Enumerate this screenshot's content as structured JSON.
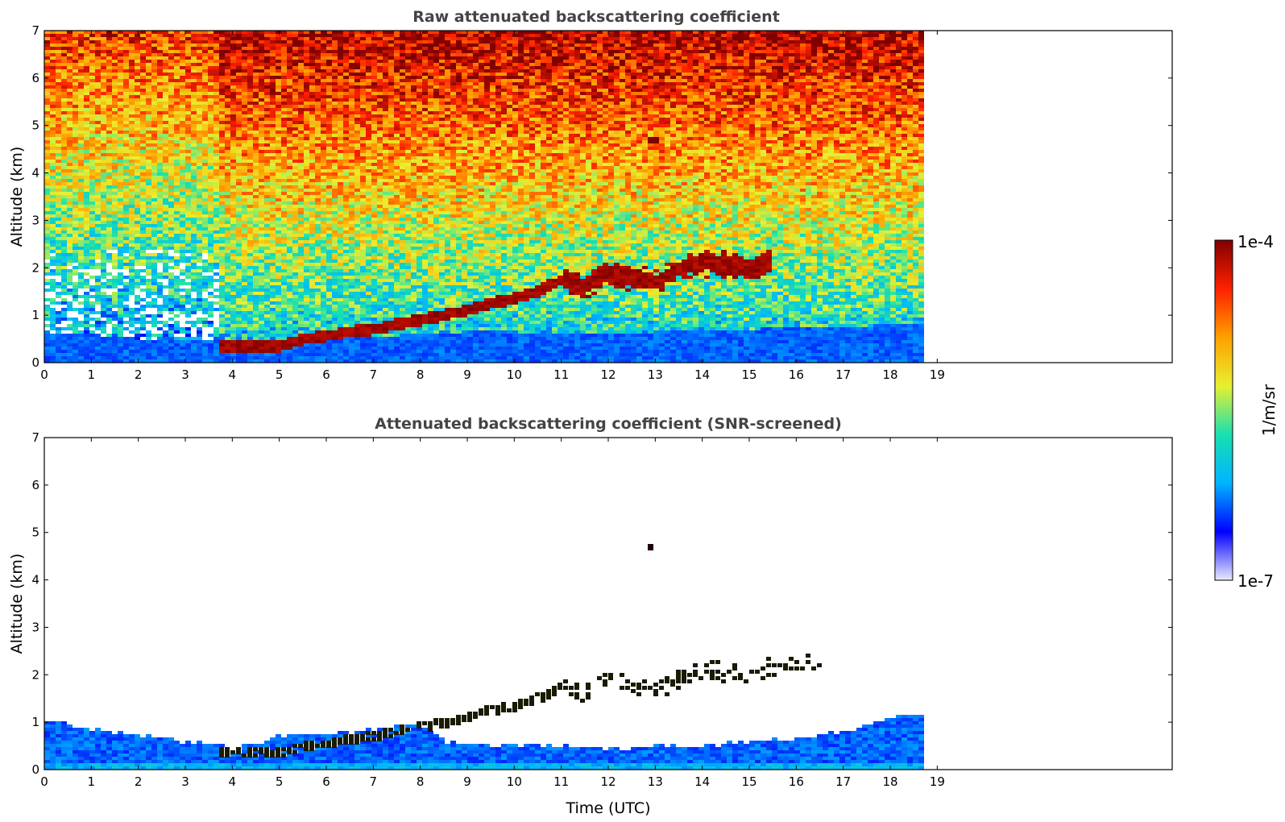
{
  "chart_data": [
    {
      "type": "heatmap",
      "title": "Raw attenuated backscattering coefficient",
      "xlabel": "",
      "ylabel": "Altitude (km)",
      "xlim": [
        0,
        24
      ],
      "ylim": [
        0,
        7
      ],
      "x_ticks": [
        "0",
        "1",
        "2",
        "3",
        "4",
        "5",
        "6",
        "7",
        "8",
        "9",
        "10",
        "11",
        "12",
        "13",
        "14",
        "15",
        "16",
        "17",
        "18",
        "19"
      ],
      "y_ticks": [
        "0",
        "1",
        "2",
        "3",
        "4",
        "5",
        "6",
        "7"
      ],
      "data_end_time": 18.8,
      "noise_change_time": 3.75,
      "boundary_layer_top_km": [
        [
          0,
          0.65
        ],
        [
          1,
          0.6
        ],
        [
          2,
          0.5
        ],
        [
          3,
          0.45
        ],
        [
          3.75,
          0.45
        ],
        [
          4,
          0.4
        ],
        [
          5,
          0.5
        ],
        [
          6,
          0.5
        ],
        [
          7,
          0.55
        ],
        [
          8,
          0.6
        ],
        [
          9,
          0.65
        ],
        [
          10,
          0.65
        ],
        [
          11,
          0.6
        ],
        [
          12,
          0.6
        ],
        [
          13,
          0.65
        ],
        [
          14,
          0.65
        ],
        [
          15,
          0.7
        ],
        [
          16,
          0.75
        ],
        [
          17,
          0.75
        ],
        [
          18,
          0.8
        ],
        [
          18.8,
          0.8
        ]
      ],
      "aerosol_layer_km": [
        [
          3.75,
          0.35
        ],
        [
          4.5,
          0.35
        ],
        [
          5,
          0.35
        ],
        [
          5.6,
          0.5
        ],
        [
          6,
          0.55
        ],
        [
          6.5,
          0.65
        ],
        [
          7,
          0.7
        ],
        [
          7.5,
          0.8
        ],
        [
          8,
          0.9
        ],
        [
          8.5,
          1.0
        ],
        [
          9,
          1.1
        ],
        [
          9.5,
          1.25
        ],
        [
          10,
          1.35
        ],
        [
          10.5,
          1.5
        ],
        [
          11,
          1.75
        ],
        [
          11.5,
          1.6
        ],
        [
          12,
          1.9
        ],
        [
          12.5,
          1.8
        ],
        [
          13,
          1.7
        ],
        [
          13.5,
          1.95
        ],
        [
          14,
          2.1
        ],
        [
          15,
          2.0
        ],
        [
          15.5,
          2.15
        ]
      ],
      "isolated_feature": {
        "time": 12.9,
        "altitude_km": 4.7
      }
    },
    {
      "type": "heatmap",
      "title": "Attenuated backscattering coefficient (SNR-screened)",
      "xlabel": "Time (UTC)",
      "ylabel": "Altitude (km)",
      "xlim": [
        0,
        24
      ],
      "ylim": [
        0,
        7
      ],
      "x_ticks": [
        "0",
        "1",
        "2",
        "3",
        "4",
        "5",
        "6",
        "7",
        "8",
        "9",
        "10",
        "11",
        "12",
        "13",
        "14",
        "15",
        "16",
        "17",
        "18",
        "19"
      ],
      "y_ticks": [
        "0",
        "1",
        "2",
        "3",
        "4",
        "5",
        "6",
        "7"
      ],
      "data_end_time": 18.8,
      "screened_signal_top_km": [
        [
          0,
          1.05
        ],
        [
          1,
          0.85
        ],
        [
          2,
          0.75
        ],
        [
          3,
          0.6
        ],
        [
          3.75,
          0.55
        ],
        [
          4,
          0.45
        ],
        [
          5,
          0.7
        ],
        [
          6,
          0.75
        ],
        [
          7,
          0.85
        ],
        [
          8,
          0.95
        ],
        [
          8.5,
          0.6
        ],
        [
          9,
          0.55
        ],
        [
          10,
          0.5
        ],
        [
          11,
          0.5
        ],
        [
          12,
          0.45
        ],
        [
          13,
          0.5
        ],
        [
          14,
          0.5
        ],
        [
          15,
          0.6
        ],
        [
          16,
          0.65
        ],
        [
          17,
          0.8
        ],
        [
          18,
          1.1
        ],
        [
          18.8,
          1.2
        ]
      ],
      "aerosol_layer_km": [
        [
          3.75,
          0.35
        ],
        [
          4.5,
          0.35
        ],
        [
          5,
          0.35
        ],
        [
          5.6,
          0.5
        ],
        [
          6,
          0.55
        ],
        [
          6.5,
          0.65
        ],
        [
          7,
          0.7
        ],
        [
          7.5,
          0.8
        ],
        [
          8,
          0.9
        ],
        [
          8.5,
          1.0
        ],
        [
          9,
          1.1
        ],
        [
          9.5,
          1.25
        ],
        [
          10,
          1.35
        ],
        [
          10.5,
          1.5
        ],
        [
          11,
          1.75
        ],
        [
          11.5,
          1.6
        ],
        [
          12,
          1.9
        ],
        [
          12.5,
          1.8
        ],
        [
          13,
          1.7
        ],
        [
          13.5,
          1.95
        ],
        [
          14,
          2.1
        ],
        [
          15,
          2.0
        ],
        [
          15.5,
          2.15
        ],
        [
          16.5,
          2.3
        ]
      ],
      "isolated_feature": {
        "time": 12.9,
        "altitude_km": 4.7
      }
    }
  ],
  "colorbar": {
    "label": "1/m/sr",
    "max_label": "1e-4",
    "min_label": "1e-7",
    "colors": [
      "#e9e9fb",
      "#0000ff",
      "#00b4ff",
      "#18e0b0",
      "#e8f030",
      "#ffa000",
      "#ff2000",
      "#800000"
    ]
  }
}
